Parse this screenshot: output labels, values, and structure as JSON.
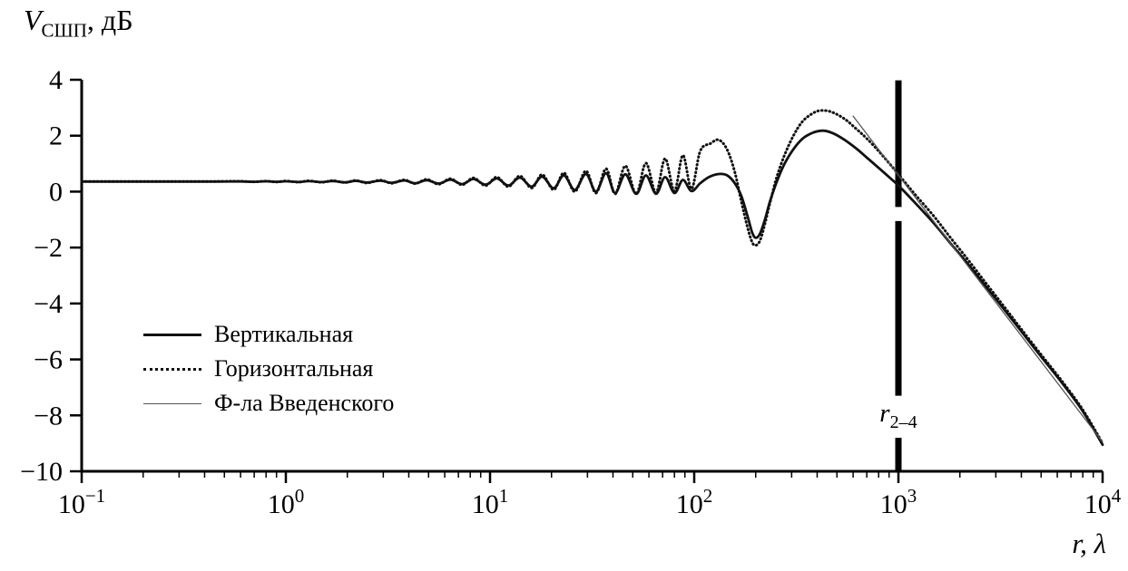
{
  "chart_data": {
    "type": "line",
    "x_scale": "log",
    "xlim_exponents": [
      -1,
      4
    ],
    "ylim": [
      -10,
      4
    ],
    "x_tick_base": 10,
    "x_tick_exponents": [
      -1,
      0,
      1,
      2,
      3,
      4
    ],
    "y_ticks": [
      4,
      2,
      0,
      -2,
      -4,
      -6,
      -8,
      -10
    ],
    "grid": false,
    "legend_position": "inside-bottom-left",
    "ylabel_var": "V",
    "ylabel_sub": "СШП",
    "ylabel_rest": ", дБ",
    "xlabel_var": "r",
    "xlabel_rest": ", λ",
    "marker": {
      "x": 1000,
      "label_var": "r",
      "label_sub": "2–4",
      "segments": [
        [
          3.98,
          -0.55
        ],
        [
          -1.05,
          -7.3
        ],
        [
          -8.8,
          -10
        ]
      ]
    },
    "series": [
      {
        "name": "Вертикальная",
        "style": "solid",
        "color": "#111111",
        "width": 2.8,
        "points": [
          [
            0.1,
            0.36
          ],
          [
            0.2,
            0.36
          ],
          [
            0.3,
            0.36
          ],
          [
            0.45,
            0.36
          ],
          [
            0.6,
            0.365
          ],
          [
            0.7,
            0.35
          ],
          [
            0.8,
            0.37
          ],
          [
            0.9,
            0.35
          ],
          [
            1.0,
            0.37
          ],
          [
            1.15,
            0.345
          ],
          [
            1.3,
            0.375
          ],
          [
            1.5,
            0.34
          ],
          [
            1.7,
            0.38
          ],
          [
            1.95,
            0.33
          ],
          [
            2.2,
            0.385
          ],
          [
            2.5,
            0.325
          ],
          [
            2.9,
            0.39
          ],
          [
            3.3,
            0.315
          ],
          [
            3.8,
            0.4
          ],
          [
            4.3,
            0.3
          ],
          [
            4.9,
            0.41
          ],
          [
            5.6,
            0.29
          ],
          [
            6.4,
            0.43
          ],
          [
            7.3,
            0.27
          ],
          [
            8.3,
            0.45
          ],
          [
            9.5,
            0.25
          ],
          [
            10.8,
            0.47
          ],
          [
            12.3,
            0.22
          ],
          [
            14,
            0.5
          ],
          [
            16,
            0.18
          ],
          [
            18,
            0.54
          ],
          [
            20.5,
            0.12
          ],
          [
            23,
            0.58
          ],
          [
            26,
            0.06
          ],
          [
            29.5,
            0.63
          ],
          [
            33,
            0.0
          ],
          [
            37,
            0.66
          ],
          [
            41,
            -0.05
          ],
          [
            46,
            0.62
          ],
          [
            52,
            -0.08
          ],
          [
            58,
            0.58
          ],
          [
            65,
            -0.08
          ],
          [
            72,
            0.52
          ],
          [
            80,
            -0.05
          ],
          [
            88,
            0.42
          ],
          [
            97,
            0.02
          ],
          [
            107,
            0.3
          ],
          [
            118,
            0.52
          ],
          [
            132,
            0.63
          ],
          [
            145,
            0.58
          ],
          [
            158,
            0.3
          ],
          [
            170,
            -0.15
          ],
          [
            182,
            -0.85
          ],
          [
            192,
            -1.45
          ],
          [
            200,
            -1.65
          ],
          [
            210,
            -1.5
          ],
          [
            222,
            -1.0
          ],
          [
            235,
            -0.35
          ],
          [
            252,
            0.3
          ],
          [
            275,
            0.95
          ],
          [
            305,
            1.5
          ],
          [
            340,
            1.9
          ],
          [
            385,
            2.12
          ],
          [
            430,
            2.18
          ],
          [
            480,
            2.08
          ],
          [
            545,
            1.85
          ],
          [
            620,
            1.55
          ],
          [
            700,
            1.22
          ],
          [
            800,
            0.85
          ],
          [
            900,
            0.52
          ],
          [
            1000,
            0.22
          ],
          [
            1200,
            -0.38
          ],
          [
            1500,
            -1.15
          ],
          [
            1800,
            -1.85
          ],
          [
            2200,
            -2.6
          ],
          [
            2700,
            -3.42
          ],
          [
            3300,
            -4.22
          ],
          [
            4000,
            -5.0
          ],
          [
            5000,
            -5.9
          ],
          [
            6300,
            -6.82
          ],
          [
            8000,
            -7.85
          ],
          [
            10000,
            -9.05
          ]
        ]
      },
      {
        "name": "Горизонтальная",
        "style": "dotted",
        "color": "#111111",
        "width": 3,
        "points": [
          [
            0.1,
            0.36
          ],
          [
            0.2,
            0.36
          ],
          [
            0.3,
            0.36
          ],
          [
            0.45,
            0.365
          ],
          [
            0.6,
            0.37
          ],
          [
            0.7,
            0.35
          ],
          [
            0.8,
            0.375
          ],
          [
            0.9,
            0.345
          ],
          [
            1.0,
            0.38
          ],
          [
            1.15,
            0.34
          ],
          [
            1.3,
            0.385
          ],
          [
            1.5,
            0.335
          ],
          [
            1.7,
            0.39
          ],
          [
            1.95,
            0.325
          ],
          [
            2.2,
            0.4
          ],
          [
            2.5,
            0.31
          ],
          [
            2.9,
            0.41
          ],
          [
            3.3,
            0.3
          ],
          [
            3.8,
            0.42
          ],
          [
            4.3,
            0.285
          ],
          [
            4.9,
            0.44
          ],
          [
            5.6,
            0.265
          ],
          [
            6.4,
            0.46
          ],
          [
            7.3,
            0.245
          ],
          [
            8.3,
            0.49
          ],
          [
            9.5,
            0.215
          ],
          [
            10.8,
            0.52
          ],
          [
            12.3,
            0.18
          ],
          [
            14,
            0.56
          ],
          [
            16,
            0.13
          ],
          [
            18,
            0.61
          ],
          [
            20.5,
            0.07
          ],
          [
            23,
            0.67
          ],
          [
            26,
            0.0
          ],
          [
            29.5,
            0.74
          ],
          [
            33,
            -0.05
          ],
          [
            37,
            0.82
          ],
          [
            41,
            -0.08
          ],
          [
            46,
            0.92
          ],
          [
            52,
            -0.08
          ],
          [
            58,
            1.02
          ],
          [
            65,
            -0.04
          ],
          [
            72,
            1.18
          ],
          [
            80,
            0.02
          ],
          [
            88,
            1.3
          ],
          [
            97,
            0.1
          ],
          [
            107,
            1.45
          ],
          [
            120,
            1.72
          ],
          [
            132,
            1.85
          ],
          [
            145,
            1.5
          ],
          [
            158,
            0.7
          ],
          [
            170,
            -0.35
          ],
          [
            182,
            -1.25
          ],
          [
            192,
            -1.8
          ],
          [
            200,
            -1.92
          ],
          [
            210,
            -1.75
          ],
          [
            222,
            -1.15
          ],
          [
            235,
            -0.4
          ],
          [
            252,
            0.45
          ],
          [
            275,
            1.25
          ],
          [
            305,
            1.98
          ],
          [
            340,
            2.52
          ],
          [
            385,
            2.82
          ],
          [
            420,
            2.9
          ],
          [
            470,
            2.85
          ],
          [
            545,
            2.6
          ],
          [
            620,
            2.25
          ],
          [
            700,
            1.9
          ],
          [
            800,
            1.45
          ],
          [
            900,
            1.02
          ],
          [
            1000,
            0.62
          ],
          [
            1200,
            -0.08
          ],
          [
            1500,
            -0.9
          ],
          [
            1800,
            -1.65
          ],
          [
            2200,
            -2.45
          ],
          [
            2700,
            -3.3
          ],
          [
            3300,
            -4.12
          ],
          [
            4000,
            -4.92
          ],
          [
            5000,
            -5.83
          ],
          [
            6300,
            -6.76
          ],
          [
            8000,
            -7.8
          ],
          [
            10000,
            -9.0
          ]
        ]
      },
      {
        "name": "Ф-ла Введенского",
        "style": "thin",
        "color": "#555555",
        "width": 1.3,
        "points": [
          [
            600,
            2.7
          ],
          [
            10000,
            -8.95
          ]
        ]
      }
    ]
  }
}
